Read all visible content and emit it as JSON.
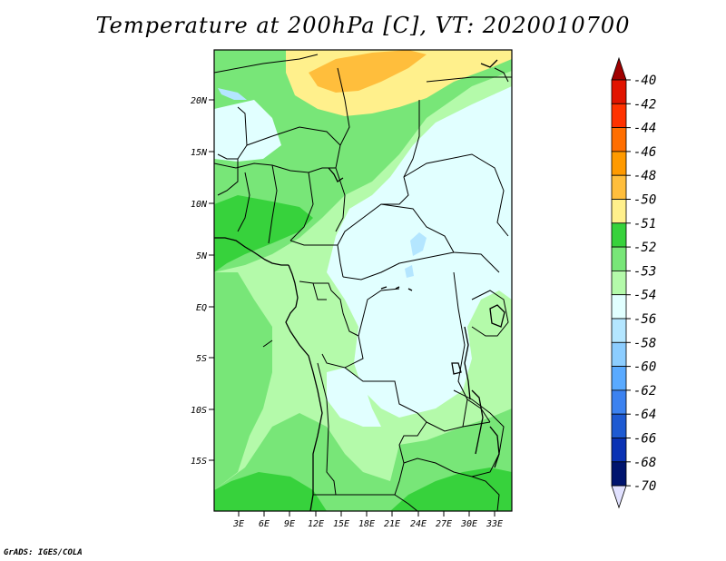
{
  "title": "Temperature at 200hPa [C], VT: 2020010700",
  "footer": "GrADS: IGES/COLA",
  "map": {
    "lat_labels": [
      "20N",
      "15N",
      "10N",
      "5N",
      "EQ",
      "5S",
      "10S",
      "15S"
    ],
    "lon_labels": [
      "3E",
      "6E",
      "9E",
      "12E",
      "15E",
      "18E",
      "21E",
      "24E",
      "27E",
      "30E",
      "33E"
    ]
  },
  "colorbar": {
    "labels": [
      "-40",
      "-42",
      "-44",
      "-46",
      "-48",
      "-50",
      "-51",
      "-52",
      "-53",
      "-54",
      "-56",
      "-58",
      "-60",
      "-62",
      "-64",
      "-66",
      "-68",
      "-70"
    ],
    "colors": [
      "#a00000",
      "#e11400",
      "#ff3200",
      "#ff6e00",
      "#ff9a00",
      "#ffbe3c",
      "#fff08c",
      "#37d23c",
      "#78e678",
      "#b4faaa",
      "#e1ffff",
      "#b4e6ff",
      "#8ccdff",
      "#5aaaff",
      "#3c82f0",
      "#1e5ad2",
      "#0a32b4",
      "#00146e",
      "#e1e1ff"
    ]
  }
}
